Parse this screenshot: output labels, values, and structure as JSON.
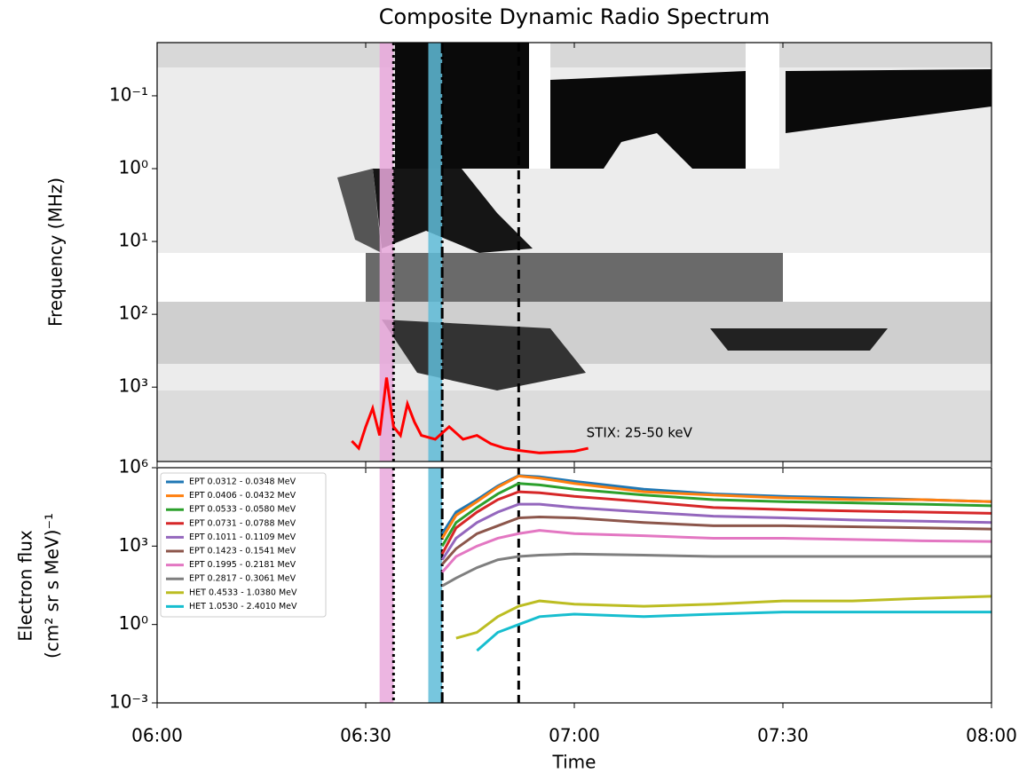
{
  "chart_data": [
    {
      "type": "spectrogram",
      "title": "Composite Dynamic Radio Spectrum",
      "ylabel": "Frequency (MHz)",
      "log_y": true,
      "invert_y": true,
      "xlim": [
        "06:00",
        "08:00"
      ],
      "xticks": [
        "06:00",
        "06:30",
        "07:00",
        "07:30",
        "08:00"
      ],
      "ylim": [
        0.0186,
        10500
      ],
      "yticks": [
        {
          "value": 0.1,
          "label": "10⁻¹"
        },
        {
          "value": 1,
          "label": "10⁰"
        },
        {
          "value": 10,
          "label": "10¹"
        },
        {
          "value": 100,
          "label": "10²"
        },
        {
          "value": 1000,
          "label": "10³"
        }
      ],
      "stix": {
        "name": "STIX: 25-50 keV",
        "color": "#ff0000",
        "x": [
          "06:28",
          "06:29",
          "06:30",
          "06:31",
          "06:32",
          "06:33",
          "06:34",
          "06:35",
          "06:36",
          "06:37",
          "06:38",
          "06:40",
          "06:42",
          "06:44",
          "06:46",
          "06:48",
          "06:50",
          "06:52",
          "06:55",
          "07:00",
          "07:02"
        ],
        "values": [
          5500,
          6900,
          3500,
          1950,
          4600,
          740,
          3500,
          4600,
          1700,
          3000,
          4600,
          5200,
          3500,
          5200,
          4600,
          6000,
          6900,
          7400,
          8000,
          7600,
          6900
        ]
      },
      "shaded_intervals": [
        {
          "start": "06:32",
          "end": "06:34",
          "color": "#e9a8dc"
        },
        {
          "start": "06:39",
          "end": "06:41",
          "color": "#5fbcd8"
        }
      ],
      "vlines": [
        {
          "x": "06:34",
          "style": "dotted"
        },
        {
          "x": "06:41",
          "style": "dashdot"
        },
        {
          "x": "06:52",
          "style": "dashed"
        }
      ]
    },
    {
      "type": "line",
      "xlabel": "Time",
      "ylabel": [
        "Electron flux",
        "(cm² sr s MeV)⁻¹"
      ],
      "log_y": true,
      "xlim": [
        "06:00",
        "08:00"
      ],
      "xticks": [
        "06:00",
        "06:30",
        "07:00",
        "07:30",
        "08:00"
      ],
      "ylim": [
        0.001,
        1000000
      ],
      "yticks": [
        {
          "value": 0.001,
          "label": "10⁻³"
        },
        {
          "value": 1,
          "label": "10⁰"
        },
        {
          "value": 1000,
          "label": "10³"
        },
        {
          "value": 1000000,
          "label": "10⁶"
        }
      ],
      "legend": "upper left",
      "x": [
        "06:41",
        "06:43",
        "06:46",
        "06:49",
        "06:52",
        "06:55",
        "07:00",
        "07:10",
        "07:20",
        "07:30",
        "07:40",
        "07:50",
        "08:00"
      ],
      "series": [
        {
          "name": "EPT 0.0312 - 0.0348 MeV",
          "color": "#1f77b4",
          "values": [
            3000,
            20000,
            60000,
            200000,
            500000,
            450000,
            300000,
            150000,
            100000,
            80000,
            70000,
            60000,
            50000
          ]
        },
        {
          "name": "EPT 0.0406 - 0.0432 MeV",
          "color": "#ff7f0e",
          "values": [
            2000,
            15000,
            50000,
            180000,
            480000,
            400000,
            250000,
            120000,
            90000,
            70000,
            60000,
            60000,
            50000
          ]
        },
        {
          "name": "EPT 0.0533 - 0.0580 MeV",
          "color": "#2ca02c",
          "values": [
            1000,
            8000,
            30000,
            100000,
            250000,
            220000,
            150000,
            90000,
            60000,
            50000,
            45000,
            40000,
            35000
          ]
        },
        {
          "name": "EPT 0.0731 - 0.0788 MeV",
          "color": "#d62728",
          "values": [
            500,
            5000,
            20000,
            60000,
            120000,
            110000,
            80000,
            50000,
            30000,
            25000,
            22000,
            20000,
            18000
          ]
        },
        {
          "name": "EPT 0.1011 - 0.1109 MeV",
          "color": "#9467bd",
          "values": [
            300,
            2000,
            8000,
            20000,
            40000,
            40000,
            30000,
            20000,
            14000,
            12000,
            10000,
            9000,
            8000
          ]
        },
        {
          "name": "EPT 0.1423 - 0.1541 MeV",
          "color": "#8c564b",
          "values": [
            200,
            800,
            3000,
            6000,
            12000,
            13000,
            12000,
            8000,
            6000,
            6000,
            5500,
            5000,
            4500
          ]
        },
        {
          "name": "EPT 0.1995 - 0.2181 MeV",
          "color": "#e377c2",
          "values": [
            100,
            400,
            1000,
            2000,
            3000,
            4000,
            3000,
            2500,
            2000,
            2000,
            1800,
            1600,
            1500
          ]
        },
        {
          "name": "EPT 0.2817 - 0.3061 MeV",
          "color": "#7f7f7f",
          "values": [
            30,
            60,
            150,
            300,
            400,
            450,
            500,
            450,
            400,
            400,
            400,
            400,
            400
          ]
        },
        {
          "name": "HET 0.4533 - 1.0380 MeV",
          "color": "#bcbd22",
          "values": [
            null,
            0.3,
            0.5,
            2,
            5,
            8,
            6,
            5,
            6,
            8,
            8,
            10,
            12
          ]
        },
        {
          "name": "HET 1.0530 - 2.4010 MeV",
          "color": "#17becf",
          "values": [
            null,
            null,
            0.1,
            0.5,
            1,
            2,
            2.5,
            2,
            2.5,
            3,
            3,
            3,
            3
          ]
        }
      ]
    }
  ]
}
